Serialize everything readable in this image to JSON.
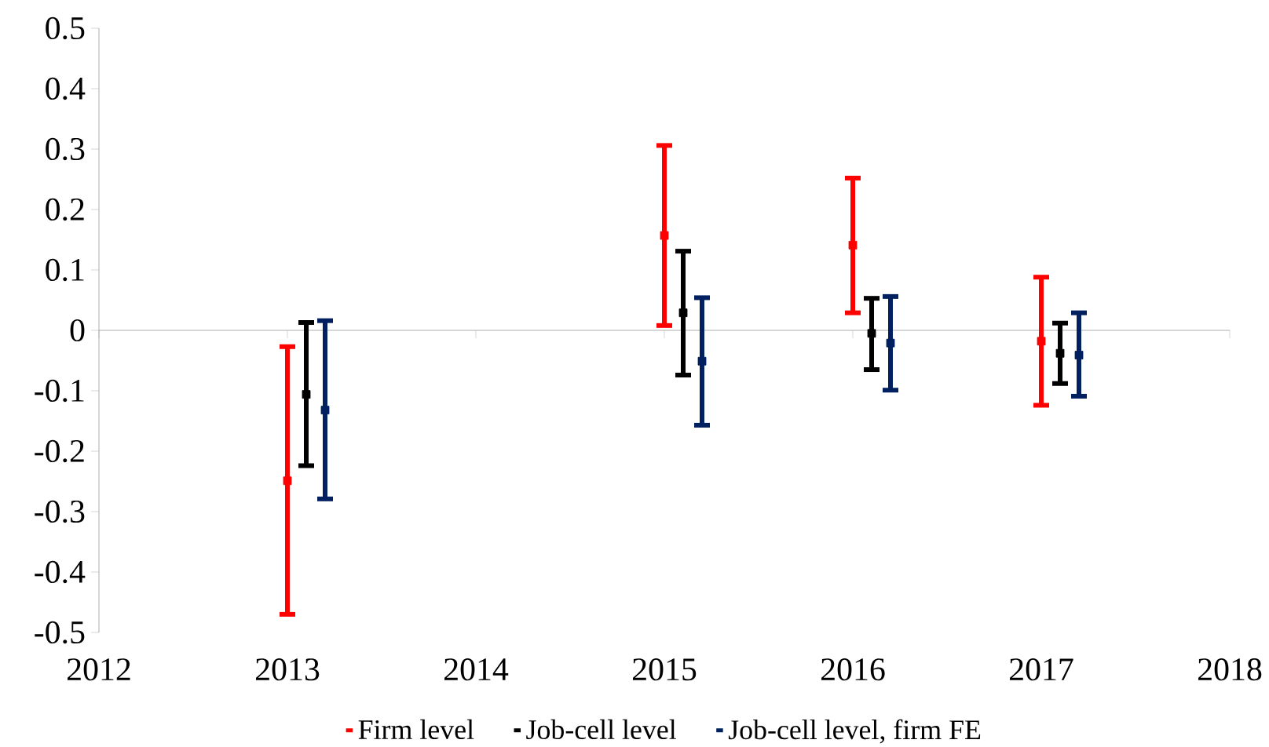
{
  "chart_data": {
    "type": "scatter",
    "xlim": [
      2012,
      2018
    ],
    "xticks": [
      2012,
      2013,
      2014,
      2015,
      2016,
      2017,
      2018
    ],
    "ylim": [
      -0.5,
      0.5
    ],
    "yticks": [
      -0.5,
      -0.4,
      -0.3,
      -0.2,
      -0.1,
      0,
      0.1,
      0.2,
      0.3,
      0.4,
      0.5
    ],
    "legend": "bottom",
    "marker": "square",
    "series": [
      {
        "name": "Firm level",
        "color": "#ff0000",
        "x": [
          2013,
          2015,
          2016,
          2017
        ],
        "values": [
          -0.249,
          0.157,
          0.141,
          -0.018
        ],
        "errors": [
          [
            -0.47,
            -0.027
          ],
          [
            0.008,
            0.306
          ],
          [
            0.029,
            0.252
          ],
          [
            -0.124,
            0.088
          ]
        ]
      },
      {
        "name": "Job-cell level",
        "color": "#000000",
        "x": [
          2013.1,
          2015.1,
          2016.1,
          2017.1
        ],
        "values": [
          -0.106,
          0.029,
          -0.005,
          -0.038
        ],
        "errors": [
          [
            -0.224,
            0.013
          ],
          [
            -0.074,
            0.131
          ],
          [
            -0.065,
            0.053
          ],
          [
            -0.088,
            0.012
          ]
        ]
      },
      {
        "name": "Job-cell level, firm FE",
        "color": "#002060",
        "x": [
          2013.2,
          2015.2,
          2016.2,
          2017.2
        ],
        "values": [
          -0.132,
          -0.051,
          -0.021,
          -0.041
        ],
        "errors": [
          [
            -0.279,
            0.016
          ],
          [
            -0.157,
            0.054
          ],
          [
            -0.099,
            0.056
          ],
          [
            -0.109,
            0.029
          ]
        ]
      }
    ]
  }
}
